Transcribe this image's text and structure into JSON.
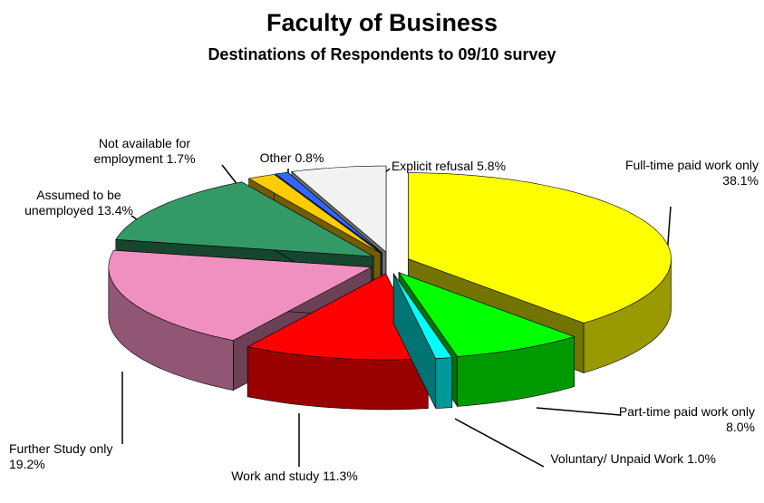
{
  "chart_data": {
    "type": "pie3d",
    "title": "Faculty of Business",
    "subtitle": "Destinations of Respondents to 09/10 survey",
    "categories": [
      "Full-time paid work only",
      "Part-time paid work only",
      "Voluntary/ Unpaid Work",
      "Work and study",
      "Further Study only",
      "Assumed to be unemployed",
      "Not available for employment",
      "Other",
      "Explicit refusal"
    ],
    "values": [
      38.1,
      8.0,
      1.0,
      11.3,
      19.2,
      13.4,
      1.7,
      0.8,
      5.8
    ],
    "value_labels": [
      "38.1%",
      "8.0%",
      "1.0%",
      "11.3%",
      "19.2%",
      "13.4%",
      "1.7%",
      "0.8%",
      "5.8%"
    ],
    "colors": [
      "#ffff00",
      "#00ff00",
      "#00ffff",
      "#ff0000",
      "#f090c0",
      "#339966",
      "#ffcc00",
      "#3366ff",
      "#f2f2f2"
    ]
  }
}
